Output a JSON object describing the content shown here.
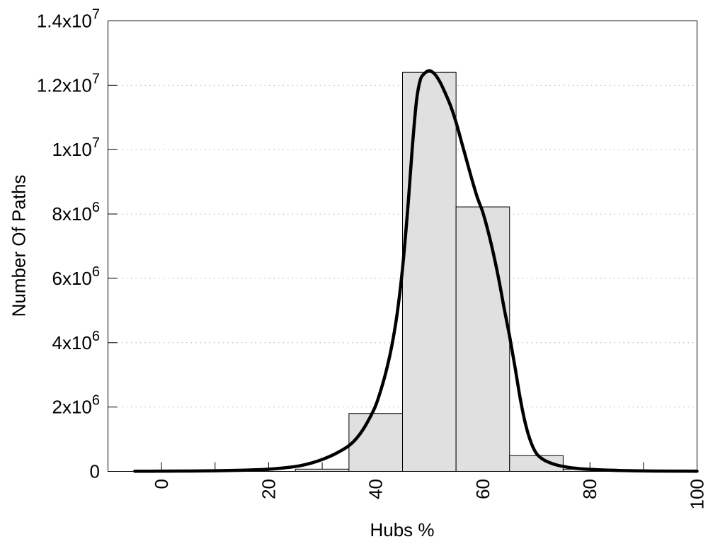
{
  "chart_data": {
    "type": "bar",
    "subtype": "histogram-with-fit-curve",
    "title": "",
    "xlabel": "Hubs %",
    "ylabel": "Number Of Paths",
    "xlim": [
      -10,
      100
    ],
    "ylim": [
      0,
      14000000
    ],
    "grid": "horizontal-dotted",
    "legend_position": "none",
    "x_ticks": {
      "all": [
        0,
        10,
        20,
        30,
        40,
        50,
        60,
        70,
        80,
        90,
        100
      ],
      "labeled": [
        0,
        20,
        40,
        60,
        80,
        100
      ],
      "label_rotation_deg": -90
    },
    "y_ticks": [
      {
        "value": 0,
        "label": "0"
      },
      {
        "value": 2000000,
        "label": "2x10^6"
      },
      {
        "value": 4000000,
        "label": "4x10^6"
      },
      {
        "value": 6000000,
        "label": "6x10^6"
      },
      {
        "value": 8000000,
        "label": "8x10^6"
      },
      {
        "value": 10000000,
        "label": "1x10^7"
      },
      {
        "value": 12000000,
        "label": "1.2x10^7"
      },
      {
        "value": 14000000,
        "label": "1.4x10^7"
      }
    ],
    "bars": [
      {
        "x_start": 25,
        "x_end": 35,
        "value": 70000
      },
      {
        "x_start": 35,
        "x_end": 45,
        "value": 1800000
      },
      {
        "x_start": 45,
        "x_end": 55,
        "value": 12400000
      },
      {
        "x_start": 55,
        "x_end": 65,
        "value": 8220000
      },
      {
        "x_start": 65,
        "x_end": 75,
        "value": 490000
      },
      {
        "x_start": 75,
        "x_end": 85,
        "value": 70000
      }
    ],
    "curve": {
      "name": "fit-curve",
      "points": [
        [
          -5,
          5000
        ],
        [
          0,
          8000
        ],
        [
          5,
          12000
        ],
        [
          10,
          20000
        ],
        [
          15,
          35000
        ],
        [
          18,
          52000
        ],
        [
          21,
          80000
        ],
        [
          24,
          130000
        ],
        [
          26,
          180000
        ],
        [
          28,
          260000
        ],
        [
          30,
          370000
        ],
        [
          32,
          510000
        ],
        [
          34,
          690000
        ],
        [
          35,
          800000
        ],
        [
          36,
          950000
        ],
        [
          37,
          1150000
        ],
        [
          38,
          1400000
        ],
        [
          39,
          1700000
        ],
        [
          40,
          2050000
        ],
        [
          41,
          2550000
        ],
        [
          42,
          3150000
        ],
        [
          43,
          3900000
        ],
        [
          44,
          4900000
        ],
        [
          45,
          6300000
        ],
        [
          46,
          8200000
        ],
        [
          46.8,
          10000000
        ],
        [
          47.6,
          11500000
        ],
        [
          48.3,
          12150000
        ],
        [
          49,
          12350000
        ],
        [
          50,
          12450000
        ],
        [
          51,
          12350000
        ],
        [
          52,
          12100000
        ],
        [
          53,
          11750000
        ],
        [
          54,
          11350000
        ],
        [
          55,
          10850000
        ],
        [
          56,
          10250000
        ],
        [
          57,
          9650000
        ],
        [
          58,
          9050000
        ],
        [
          59,
          8500000
        ],
        [
          60,
          8050000
        ],
        [
          61,
          7450000
        ],
        [
          62,
          6750000
        ],
        [
          63,
          5950000
        ],
        [
          64,
          5050000
        ],
        [
          65,
          4200000
        ],
        [
          66,
          3250000
        ],
        [
          67,
          2250000
        ],
        [
          68,
          1450000
        ],
        [
          69,
          900000
        ],
        [
          70,
          560000
        ],
        [
          71,
          400000
        ],
        [
          72,
          305000
        ],
        [
          73,
          240000
        ],
        [
          74,
          190000
        ],
        [
          75,
          155000
        ],
        [
          76,
          125000
        ],
        [
          77,
          103000
        ],
        [
          78,
          86000
        ],
        [
          80,
          62000
        ],
        [
          82,
          46000
        ],
        [
          85,
          30000
        ],
        [
          88,
          20000
        ],
        [
          92,
          12000
        ],
        [
          96,
          8000
        ],
        [
          100,
          6000
        ]
      ]
    },
    "colors": {
      "background": "#ffffff",
      "bar_fill": "#e0e0e0",
      "bar_border": "#000000",
      "curve": "#000000",
      "grid": "#b0b0b0",
      "axis": "#000000",
      "text": "#000000"
    }
  }
}
